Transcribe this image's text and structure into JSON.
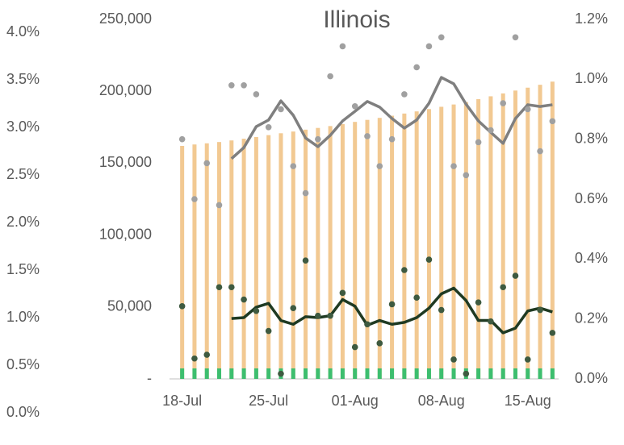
{
  "chart_data": {
    "type": "combo",
    "title": "Illinois",
    "categories": [
      "18-Jul",
      null,
      null,
      null,
      null,
      null,
      null,
      "25-Jul",
      null,
      null,
      null,
      null,
      null,
      null,
      "01-Aug",
      null,
      null,
      null,
      null,
      null,
      null,
      "08-Aug",
      null,
      null,
      null,
      null,
      null,
      null,
      "15-Aug",
      null,
      null
    ],
    "ylim": [
      0,
      250000
    ],
    "yticks": [
      {
        "value": 0,
        "label": "-"
      },
      {
        "value": 50000,
        "label": "50,000"
      },
      {
        "value": 100000,
        "label": "100,000"
      },
      {
        "value": 150000,
        "label": "150,000"
      },
      {
        "value": 200000,
        "label": "200,000"
      },
      {
        "value": 250000,
        "label": "250,000"
      }
    ],
    "y2lim": [
      0,
      1.2
    ],
    "y2ticks": [
      {
        "value": 0,
        "label": "0.0%"
      },
      {
        "value": 0.2,
        "label": "0.2%"
      },
      {
        "value": 0.4,
        "label": "0.4%"
      },
      {
        "value": 0.6,
        "label": "0.6%"
      },
      {
        "value": 0.8,
        "label": "0.8%"
      },
      {
        "value": 1.0,
        "label": "1.0%"
      },
      {
        "value": 1.2,
        "label": "1.2%"
      }
    ],
    "y3lim": [
      0,
      4
    ],
    "y3ticks": [
      {
        "value": 0,
        "label": "0.0%"
      },
      {
        "value": 0.5,
        "label": "0.5%"
      },
      {
        "value": 1.0,
        "label": "1.0%"
      },
      {
        "value": 1.5,
        "label": "1.5%"
      },
      {
        "value": 2.0,
        "label": "2.0%"
      },
      {
        "value": 2.5,
        "label": "2.5%"
      },
      {
        "value": 3.0,
        "label": "3.0%"
      },
      {
        "value": 3.5,
        "label": "3.5%"
      },
      {
        "value": 4.0,
        "label": "4.0%"
      }
    ],
    "series": [
      {
        "style": "bar",
        "color": "#f2c992",
        "values": [
          162000,
          163000,
          163800,
          164700,
          165800,
          167000,
          168200,
          169500,
          170800,
          172000,
          173300,
          174500,
          175800,
          177200,
          178700,
          180100,
          181500,
          183000,
          184500,
          186000,
          187600,
          189200,
          190800,
          192500,
          194500,
          196500,
          198500,
          200500,
          202500,
          204500,
          206700
        ]
      },
      {
        "style": "bar",
        "color": "#3dbe6f",
        "values": [
          7300,
          7300,
          7300,
          7300,
          7300,
          7300,
          7300,
          7300,
          7300,
          7300,
          7300,
          7300,
          7300,
          7300,
          7300,
          7300,
          7300,
          7300,
          7300,
          7300,
          7300,
          7300,
          7300,
          7300,
          7300,
          7300,
          7300,
          7300,
          7300,
          7300,
          7300
        ]
      },
      {
        "style": "line",
        "axis": "y2",
        "color": "#7f7f7f",
        "values": [
          null,
          null,
          null,
          null,
          0.735,
          0.772,
          0.842,
          0.864,
          0.928,
          0.88,
          0.804,
          0.775,
          0.813,
          0.861,
          0.893,
          0.926,
          0.907,
          0.869,
          0.837,
          0.864,
          0.92,
          1.006,
          0.985,
          0.917,
          0.861,
          0.823,
          0.786,
          0.869,
          0.915,
          0.909,
          0.915
        ]
      },
      {
        "style": "scatter",
        "axis": "y2",
        "color": "#a0a0a0",
        "values": [
          0.8,
          0.6,
          0.72,
          0.58,
          0.98,
          0.98,
          0.95,
          0.84,
          0.9,
          0.71,
          0.62,
          0.8,
          1.01,
          1.11,
          0.91,
          0.81,
          0.71,
          0.8,
          0.95,
          1.04,
          1.11,
          1.14,
          0.71,
          0.68,
          0.79,
          0.83,
          0.92,
          1.14,
          0.9,
          0.76,
          0.86
        ]
      },
      {
        "style": "line",
        "axis": "y3",
        "color": "#1f3a22",
        "values": [
          null,
          null,
          null,
          null,
          0.99,
          1.0,
          1.11,
          1.15,
          0.97,
          0.93,
          1.01,
          1.0,
          1.02,
          1.19,
          1.12,
          0.92,
          0.97,
          0.93,
          0.95,
          1.0,
          1.1,
          1.25,
          1.31,
          1.18,
          0.97,
          0.97,
          0.84,
          0.89,
          1.07,
          1.1,
          1.06
        ]
      },
      {
        "style": "scatter",
        "axis": "y3",
        "color": "#3e5a40",
        "values": [
          1.12,
          0.57,
          0.61,
          1.32,
          1.32,
          1.19,
          1.07,
          0.86,
          0.41,
          1.1,
          1.6,
          1.02,
          1.02,
          1.26,
          0.69,
          0.93,
          0.73,
          1.14,
          1.5,
          1.21,
          1.61,
          1.08,
          0.56,
          0.41,
          1.16,
          0.96,
          1.32,
          1.44,
          0.56,
          1.08,
          0.84
        ]
      }
    ]
  }
}
